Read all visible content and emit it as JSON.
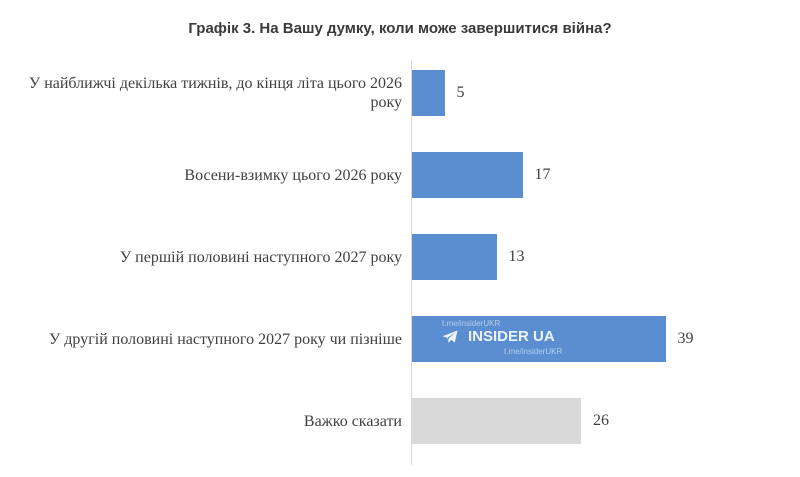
{
  "chart_data": {
    "type": "bar",
    "orientation": "horizontal",
    "title": "Графік 3. На Вашу думку, коли може завершитися війна?",
    "categories": [
      "У найближчі декілька тижнів, до кінця літа цього 2026 року",
      "Восени-взимку цього 2026 року",
      "У першій половині наступного 2027 року",
      "У другій половині наступного 2027 року чи пізніше",
      "Важко сказати"
    ],
    "values": [
      5,
      17,
      13,
      39,
      26
    ],
    "xlim": [
      0,
      40
    ],
    "grid": false,
    "legend": false,
    "colors": {
      "bar": "#5b8ed1",
      "bar_unsure": "#d9d9d9"
    }
  },
  "watermark": {
    "brand": "INSIDER UA",
    "link": "t.me/insiderUKR",
    "icon": "telegram-icon"
  }
}
